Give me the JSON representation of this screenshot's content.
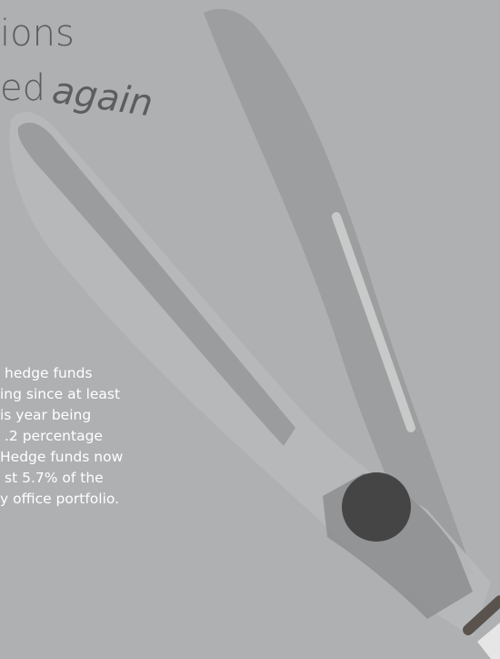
{
  "title": {
    "lines": [
      "ions",
      "ed"
    ],
    "accent": "again"
  },
  "body": {
    "lines": [
      "hedge funds",
      "ing since at least",
      "is year being",
      ".2 percentage",
      "Hedge funds now",
      "st 5.7% of the",
      "y office portfolio."
    ]
  }
}
